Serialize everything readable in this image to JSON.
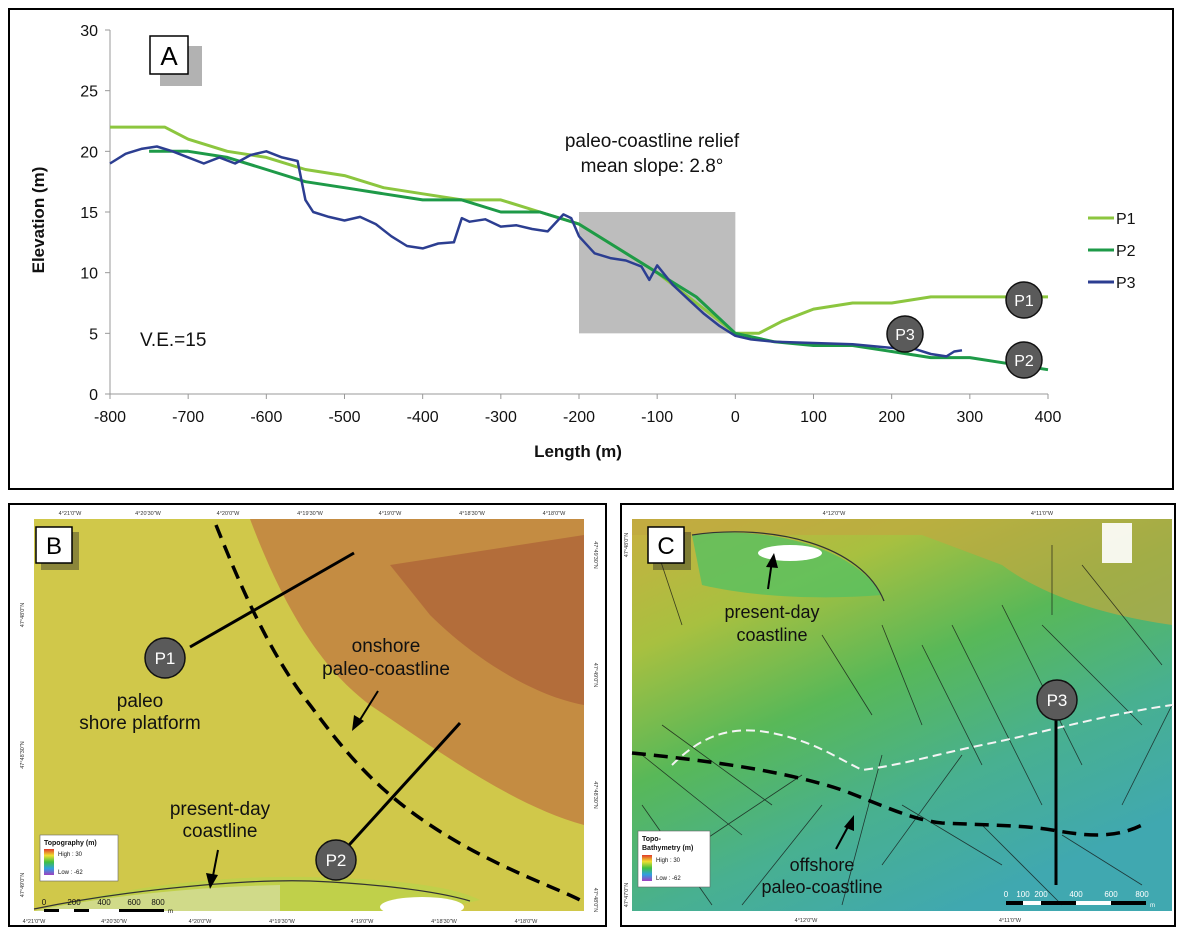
{
  "panel_a": {
    "label": "A",
    "annotation_line1": "paleo-coastline relief",
    "annotation_line2": "mean slope: 2.8°",
    "ve_label": "V.E.=15",
    "markers": [
      "P1",
      "P2",
      "P3"
    ],
    "chart_data": {
      "type": "line",
      "xlabel": "Length (m)",
      "ylabel": "Elevation (m)",
      "xlim": [
        -800,
        400
      ],
      "ylim": [
        0,
        30
      ],
      "xticks": [
        -800,
        -700,
        -600,
        -500,
        -400,
        -300,
        -200,
        -100,
        0,
        100,
        200,
        300,
        400
      ],
      "yticks": [
        0,
        5,
        10,
        15,
        20,
        25,
        30
      ],
      "grid": false,
      "legend": "right",
      "highlight_box": {
        "x": [
          -200,
          0
        ],
        "y": [
          5,
          15
        ]
      },
      "series": [
        {
          "name": "P1",
          "color": "#8cc63f",
          "x": [
            -800,
            -730,
            -700,
            -650,
            -600,
            -550,
            -500,
            -450,
            -400,
            -350,
            -300,
            -250,
            -200,
            -150,
            -100,
            -50,
            0,
            30,
            60,
            100,
            150,
            200,
            250,
            300,
            350,
            400
          ],
          "y": [
            22,
            22,
            21,
            20,
            19.5,
            18.5,
            18,
            17,
            16.5,
            16,
            16,
            15,
            14,
            12,
            10,
            7.5,
            5,
            5,
            6,
            7,
            7.5,
            7.5,
            8,
            8,
            8,
            8
          ]
        },
        {
          "name": "P2",
          "color": "#1e9a48",
          "x": [
            -750,
            -700,
            -650,
            -600,
            -550,
            -500,
            -450,
            -400,
            -350,
            -300,
            -250,
            -200,
            -150,
            -100,
            -50,
            0,
            50,
            100,
            150,
            200,
            250,
            300,
            350,
            400
          ],
          "y": [
            20,
            20,
            19.5,
            18.5,
            17.5,
            17,
            16.5,
            16,
            16,
            15,
            15,
            14,
            12,
            10,
            8,
            5,
            4.3,
            4,
            4,
            3.5,
            3,
            3,
            2.5,
            2
          ]
        },
        {
          "name": "P3",
          "color": "#2c3e91",
          "x": [
            -800,
            -780,
            -760,
            -740,
            -720,
            -700,
            -680,
            -660,
            -640,
            -620,
            -600,
            -580,
            -560,
            -550,
            -540,
            -520,
            -500,
            -480,
            -460,
            -440,
            -420,
            -400,
            -380,
            -360,
            -350,
            -340,
            -320,
            -300,
            -280,
            -260,
            -240,
            -220,
            -210,
            -200,
            -180,
            -160,
            -140,
            -120,
            -110,
            -100,
            -80,
            -60,
            -40,
            -20,
            0,
            20,
            50,
            100,
            150,
            200,
            230,
            250,
            270,
            280,
            290
          ],
          "y": [
            19,
            19.8,
            20.2,
            20.4,
            20,
            19.5,
            19,
            19.5,
            19,
            19.7,
            20,
            19.5,
            19.2,
            16,
            15,
            14.6,
            14.3,
            14.6,
            14,
            13,
            12.2,
            12,
            12.4,
            12.5,
            14.5,
            14.2,
            14.4,
            13.8,
            13.9,
            13.6,
            13.4,
            14.8,
            14.5,
            13,
            11.6,
            11.2,
            11,
            10.5,
            9.4,
            10.6,
            9,
            7.8,
            6.6,
            5.6,
            4.8,
            4.5,
            4.3,
            4.2,
            4.1,
            3.8,
            3.7,
            3.3,
            3.1,
            3.5,
            3.6
          ]
        }
      ]
    }
  },
  "panel_b": {
    "label": "B",
    "marker_p1": "P1",
    "marker_p2": "P2",
    "text_paleo_1": "paleo",
    "text_paleo_2": "shore platform",
    "text_onshore_1": "onshore",
    "text_onshore_2": "paleo-coastline",
    "text_present_1": "present-day",
    "text_present_2": "coastline",
    "legend_title": "Topography (m)",
    "legend_high": "High : 30",
    "legend_low": "Low : -62",
    "scale_labels": [
      "0",
      "200",
      "400",
      "600",
      "800"
    ],
    "scale_unit": "m",
    "top_coords": [
      "4°21'0\"W",
      "4°20'30\"W",
      "4°20'0\"W",
      "4°19'30\"W",
      "4°19'0\"W",
      "4°18'30\"W",
      "4°18'0\"W"
    ],
    "bottom_coords": [
      "4°21'0\"W",
      "4°20'30\"W",
      "4°20'0\"W",
      "4°19'30\"W",
      "4°19'0\"W",
      "4°18'30\"W",
      "4°18'0\"W"
    ],
    "left_coords": [
      "47°48'0\"N",
      "47°48'30\"N",
      "47°49'0\"N"
    ],
    "right_coords": [
      "47°49'30\"N",
      "47°49'0\"N",
      "47°48'30\"N",
      "47°48'0\"N"
    ]
  },
  "panel_c": {
    "label": "C",
    "marker_p3": "P3",
    "text_present_1": "present-day",
    "text_present_2": "coastline",
    "text_offshore_1": "offshore",
    "text_offshore_2": "paleo-coastline",
    "legend_title_1": "Topo-",
    "legend_title_2": "Bathymetry (m)",
    "legend_high": "High : 30",
    "legend_low": "Low : -62",
    "scale_labels": [
      "0",
      "100",
      "200",
      "400",
      "600",
      "800"
    ],
    "scale_unit": "m",
    "top_coords": [
      "4°12'0\"W",
      "4°11'0\"W"
    ],
    "bottom_coords": [
      "4°12'0\"W",
      "4°11'0\"W"
    ],
    "left_coords": [
      "47°48'0\"N",
      "47°47'0\"N"
    ]
  }
}
